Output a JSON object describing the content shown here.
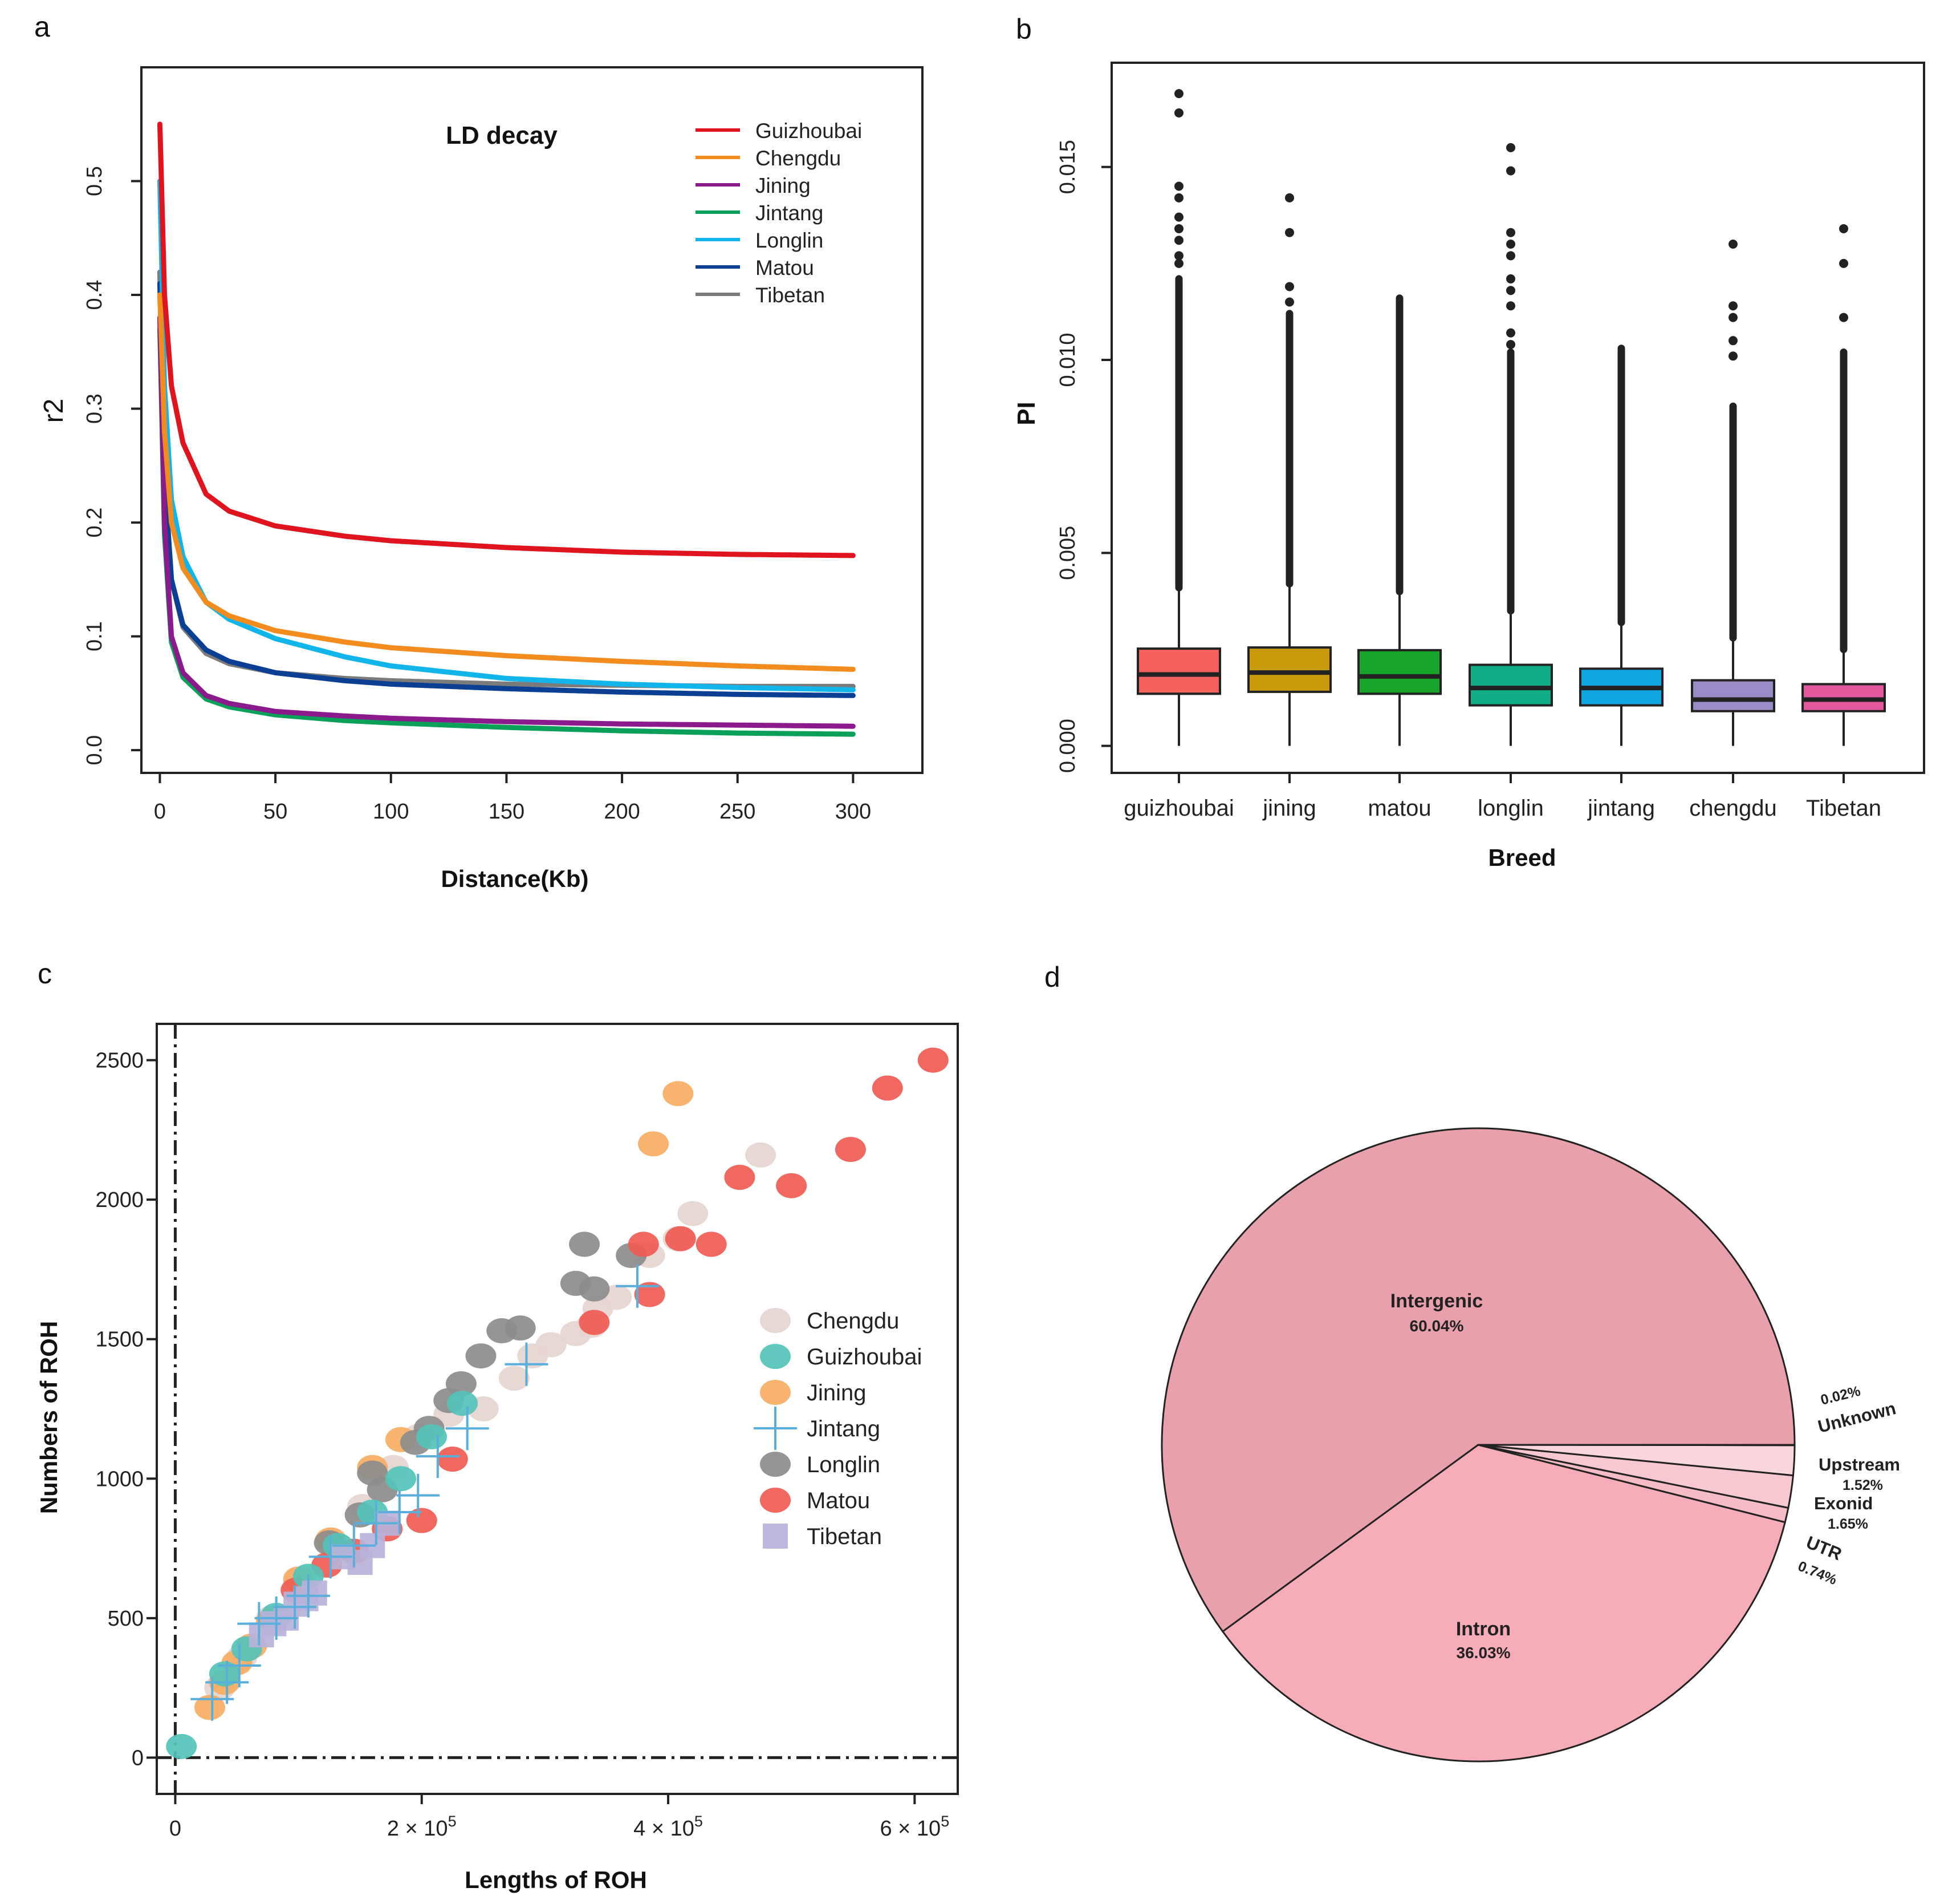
{
  "panel_labels": [
    "a",
    "b",
    "c",
    "d"
  ],
  "chart_data": [
    {
      "panel": "a",
      "type": "line",
      "title": "LD decay",
      "xlabel": "Distance(Kb)",
      "ylabel": "r2",
      "xlim": [
        -8,
        330
      ],
      "ylim": [
        -0.02,
        0.6
      ],
      "xticks": [
        0,
        50,
        100,
        150,
        200,
        250,
        300
      ],
      "yticks": [
        0.0,
        0.1,
        0.2,
        0.3,
        0.4,
        0.5
      ],
      "ytick_labels": [
        "0.0",
        "0.1",
        "0.2",
        "0.3",
        "0.4",
        "0.5"
      ],
      "legend_position": "top-right",
      "series": [
        {
          "name": "Guizhoubai",
          "color": "#e0141e",
          "x": [
            0,
            2,
            5,
            10,
            20,
            30,
            50,
            80,
            100,
            150,
            200,
            250,
            300
          ],
          "y": [
            0.55,
            0.4,
            0.32,
            0.27,
            0.225,
            0.21,
            0.197,
            0.188,
            0.184,
            0.178,
            0.174,
            0.172,
            0.171
          ]
        },
        {
          "name": "Chengdu",
          "color": "#f28c1e",
          "x": [
            0,
            2,
            5,
            10,
            20,
            30,
            50,
            80,
            100,
            150,
            200,
            250,
            300
          ],
          "y": [
            0.4,
            0.28,
            0.2,
            0.16,
            0.13,
            0.118,
            0.105,
            0.095,
            0.09,
            0.083,
            0.078,
            0.074,
            0.071
          ]
        },
        {
          "name": "Jining",
          "color": "#8b1a8c",
          "x": [
            0,
            2,
            5,
            10,
            20,
            30,
            50,
            80,
            100,
            150,
            200,
            250,
            300
          ],
          "y": [
            0.38,
            0.2,
            0.1,
            0.068,
            0.048,
            0.041,
            0.034,
            0.03,
            0.028,
            0.025,
            0.023,
            0.022,
            0.021
          ]
        },
        {
          "name": "Jintang",
          "color": "#0aa05a",
          "x": [
            0,
            2,
            5,
            10,
            20,
            30,
            50,
            80,
            100,
            150,
            200,
            250,
            300
          ],
          "y": [
            0.37,
            0.19,
            0.095,
            0.064,
            0.045,
            0.038,
            0.031,
            0.026,
            0.024,
            0.02,
            0.017,
            0.015,
            0.014
          ]
        },
        {
          "name": "Longlin",
          "color": "#12b5ea",
          "x": [
            0,
            2,
            5,
            10,
            20,
            30,
            50,
            80,
            100,
            150,
            200,
            250,
            300
          ],
          "y": [
            0.5,
            0.32,
            0.22,
            0.17,
            0.13,
            0.115,
            0.098,
            0.082,
            0.074,
            0.063,
            0.058,
            0.055,
            0.053
          ]
        },
        {
          "name": "Matou",
          "color": "#0a3f94",
          "x": [
            0,
            2,
            5,
            10,
            20,
            30,
            50,
            80,
            100,
            150,
            200,
            250,
            300
          ],
          "y": [
            0.41,
            0.24,
            0.15,
            0.11,
            0.088,
            0.078,
            0.068,
            0.061,
            0.058,
            0.054,
            0.051,
            0.049,
            0.048
          ]
        },
        {
          "name": "Tibetan",
          "color": "#7b7b7b",
          "x": [
            0,
            2,
            5,
            10,
            20,
            30,
            50,
            80,
            100,
            150,
            200,
            250,
            300
          ],
          "y": [
            0.42,
            0.24,
            0.15,
            0.108,
            0.085,
            0.076,
            0.068,
            0.063,
            0.061,
            0.058,
            0.057,
            0.056,
            0.056
          ]
        }
      ]
    },
    {
      "panel": "b",
      "type": "box",
      "xlabel": "Breed",
      "ylabel": "PI",
      "ylim": [
        -0.0007,
        0.0177
      ],
      "yticks": [
        0.0,
        0.005,
        0.01,
        0.015
      ],
      "ytick_labels": [
        "0.000",
        "0.005",
        "0.010",
        "0.015"
      ],
      "categories": [
        "guizhoubai",
        "jining",
        "matou",
        "longlin",
        "jintang",
        "chengdu",
        "Tibetan"
      ],
      "boxes": [
        {
          "name": "guizhoubai",
          "color": "#f4605b",
          "whisker_low": 0.0,
          "q1": 0.00135,
          "median": 0.00185,
          "q3": 0.00252,
          "whisker_high": 0.0041,
          "outlier_range": [
            0.0041,
            0.0121
          ],
          "outliers_extra": [
            0.0125,
            0.0127,
            0.0131,
            0.0134,
            0.0137,
            0.0142,
            0.0145,
            0.0164,
            0.0169
          ]
        },
        {
          "name": "jining",
          "color": "#c89a0c",
          "whisker_low": 0.0,
          "q1": 0.0014,
          "median": 0.0019,
          "q3": 0.00255,
          "whisker_high": 0.0042,
          "outlier_range": [
            0.0042,
            0.0112
          ],
          "outliers_extra": [
            0.0115,
            0.0119,
            0.0133,
            0.0142
          ]
        },
        {
          "name": "matou",
          "color": "#18a32a",
          "whisker_low": 0.0,
          "q1": 0.00135,
          "median": 0.0018,
          "q3": 0.00248,
          "whisker_high": 0.004,
          "outlier_range": [
            0.004,
            0.0116
          ],
          "outliers_extra": []
        },
        {
          "name": "longlin",
          "color": "#12ad86",
          "whisker_low": 0.0,
          "q1": 0.00105,
          "median": 0.0015,
          "q3": 0.0021,
          "whisker_high": 0.0035,
          "outlier_range": [
            0.0035,
            0.0102
          ],
          "outliers_extra": [
            0.0104,
            0.0107,
            0.0114,
            0.0118,
            0.0121,
            0.0127,
            0.013,
            0.0133,
            0.0149,
            0.0155
          ]
        },
        {
          "name": "jintang",
          "color": "#12a6e0",
          "whisker_low": 0.0,
          "q1": 0.00105,
          "median": 0.0015,
          "q3": 0.002,
          "whisker_high": 0.0032,
          "outlier_range": [
            0.0032,
            0.0103
          ],
          "outliers_extra": []
        },
        {
          "name": "chengdu",
          "color": "#9b8cc8",
          "whisker_low": 0.0,
          "q1": 0.0009,
          "median": 0.0012,
          "q3": 0.0017,
          "whisker_high": 0.0028,
          "outlier_range": [
            0.0028,
            0.0088
          ],
          "outliers_extra": [
            0.0101,
            0.0105,
            0.0111,
            0.0114,
            0.013
          ]
        },
        {
          "name": "Tibetan",
          "color": "#e3579c",
          "whisker_low": 0.0,
          "q1": 0.0009,
          "median": 0.0012,
          "q3": 0.0016,
          "whisker_high": 0.0025,
          "outlier_range": [
            0.0025,
            0.0102
          ],
          "outliers_extra": [
            0.0111,
            0.0125,
            0.0134
          ]
        }
      ]
    },
    {
      "panel": "c",
      "type": "scatter",
      "xlabel": "Lengths of ROH",
      "ylabel": "Numbers of ROH",
      "xlim": [
        -15000,
        635000
      ],
      "ylim": [
        -130,
        2630
      ],
      "yticks": [
        0,
        500,
        1000,
        1500,
        2000,
        2500
      ],
      "ytick_labels": [
        "0",
        "500",
        "1000",
        "1500",
        "2000",
        "2500"
      ],
      "xticks": [
        0,
        200000,
        400000,
        600000
      ],
      "xtick_labels": [
        "0",
        "2 × 10",
        "4 × 10",
        "6 × 10"
      ],
      "xtick_exponent": "5",
      "legend_position": "right",
      "series": [
        {
          "name": "Chengdu",
          "color": "#e6d5d0",
          "marker": "circle",
          "x": [
            36000,
            54000,
            78000,
            102000,
            127000,
            152000,
            177000,
            197000,
            222000,
            250000,
            275000,
            290000,
            305000,
            325000,
            338000,
            343000,
            358000,
            385000,
            408000,
            420000,
            475000
          ],
          "y": [
            250,
            360,
            500,
            640,
            780,
            900,
            1040,
            1150,
            1230,
            1250,
            1360,
            1440,
            1480,
            1520,
            1550,
            1610,
            1650,
            1800,
            1860,
            1950,
            2160
          ]
        },
        {
          "name": "Guizhoubai",
          "color": "#54c3b8",
          "marker": "circle",
          "x": [
            5000,
            40000,
            58000,
            82000,
            108000,
            132000,
            160000,
            183000,
            208000,
            233000
          ],
          "y": [
            40,
            300,
            390,
            510,
            650,
            760,
            880,
            1000,
            1150,
            1270
          ]
        },
        {
          "name": "Jining",
          "color": "#f7ad63",
          "marker": "circle",
          "x": [
            28000,
            40000,
            50000,
            62000,
            78000,
            100000,
            126000,
            160000,
            183000,
            388000,
            408000
          ],
          "y": [
            180,
            270,
            340,
            400,
            490,
            640,
            780,
            1040,
            1140,
            2200,
            2380
          ]
        },
        {
          "name": "Jintang",
          "color": "#5aaedc",
          "marker": "plus",
          "x": [
            30000,
            42000,
            52000,
            68000,
            82000,
            97000,
            108000,
            126000,
            145000,
            163000,
            182000,
            197000,
            213000,
            237000,
            285000,
            375000
          ],
          "y": [
            210,
            270,
            330,
            480,
            500,
            540,
            580,
            720,
            760,
            840,
            880,
            940,
            1080,
            1180,
            1410,
            1690
          ]
        },
        {
          "name": "Longlin",
          "color": "#8c8c8c",
          "marker": "circle",
          "x": [
            125000,
            150000,
            160000,
            168000,
            195000,
            206000,
            222000,
            232000,
            248000,
            265000,
            280000,
            325000,
            332000,
            340000,
            370000
          ],
          "y": [
            770,
            870,
            1020,
            960,
            1130,
            1180,
            1280,
            1340,
            1440,
            1530,
            1540,
            1700,
            1840,
            1680,
            1800
          ]
        },
        {
          "name": "Matou",
          "color": "#ef5b52",
          "marker": "circle",
          "x": [
            98000,
            123000,
            145000,
            172000,
            200000,
            225000,
            340000,
            380000,
            385000,
            410000,
            435000,
            458000,
            500000,
            548000,
            578000,
            615000
          ],
          "y": [
            600,
            690,
            740,
            820,
            850,
            1070,
            1560,
            1840,
            1660,
            1860,
            1840,
            2080,
            2050,
            2180,
            2400,
            2500
          ]
        },
        {
          "name": "Tibetan",
          "color": "#b7b2d9",
          "marker": "square",
          "x": [
            70000,
            80000,
            90000,
            98000,
            106000,
            113000,
            136000,
            150000,
            160000,
            172000
          ],
          "y": [
            440,
            480,
            500,
            550,
            570,
            590,
            720,
            700,
            760,
            840
          ]
        }
      ]
    },
    {
      "panel": "d",
      "type": "pie",
      "slices": [
        {
          "name": "Intergenic",
          "value": 60.04,
          "label": "60.04%",
          "color": "#e8a0aa"
        },
        {
          "name": "Intron",
          "value": 36.03,
          "label": "36.03%",
          "color": "#f6adb7"
        },
        {
          "name": "UTR",
          "value": 0.74,
          "label": "0.74%",
          "color": "#f6bcc5"
        },
        {
          "name": "Exonid",
          "value": 1.65,
          "label": "1.65%",
          "color": "#f7c8d0"
        },
        {
          "name": "Upstream",
          "value": 1.52,
          "label": "1.52%",
          "color": "#fad7dd"
        },
        {
          "name": "Unknown",
          "value": 0.02,
          "label": "0.02%",
          "color": "#fbe0e4"
        }
      ]
    }
  ]
}
